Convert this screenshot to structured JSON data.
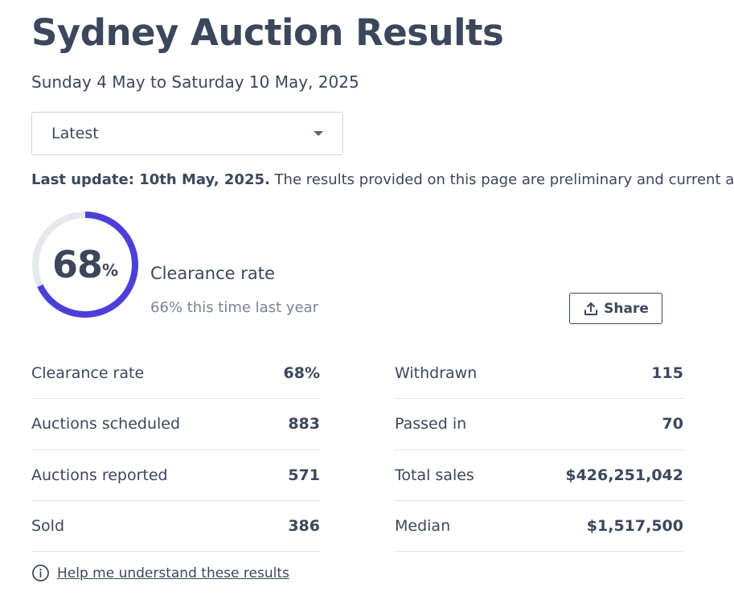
{
  "header": {
    "title": "Sydney Auction Results",
    "date_range": "Sunday 4 May to Saturday 10 May, 2025"
  },
  "period_select": {
    "selected": "Latest"
  },
  "update_notice": {
    "bold": "Last update: 10th May, 2025.",
    "text": " The results provided on this page are preliminary and current at th"
  },
  "clearance_ring": {
    "value": "68",
    "suffix": "%",
    "fraction": 0.68,
    "label": "Clearance rate",
    "last_year": "66% this time last year",
    "color_track": "#e6e8ee",
    "color_fill": "#4c3fd8"
  },
  "share_button": {
    "label": "Share",
    "icon": "upload-icon"
  },
  "stats_left": [
    {
      "label": "Clearance rate",
      "value": "68%"
    },
    {
      "label": "Auctions scheduled",
      "value": "883"
    },
    {
      "label": "Auctions reported",
      "value": "571"
    },
    {
      "label": "Sold",
      "value": "386"
    }
  ],
  "stats_right": [
    {
      "label": "Withdrawn",
      "value": "115"
    },
    {
      "label": "Passed in",
      "value": "70"
    },
    {
      "label": "Total sales",
      "value": "$426,251,042"
    },
    {
      "label": "Median",
      "value": "$1,517,500"
    }
  ],
  "help": {
    "label": "Help me understand these results",
    "icon": "info-icon"
  }
}
